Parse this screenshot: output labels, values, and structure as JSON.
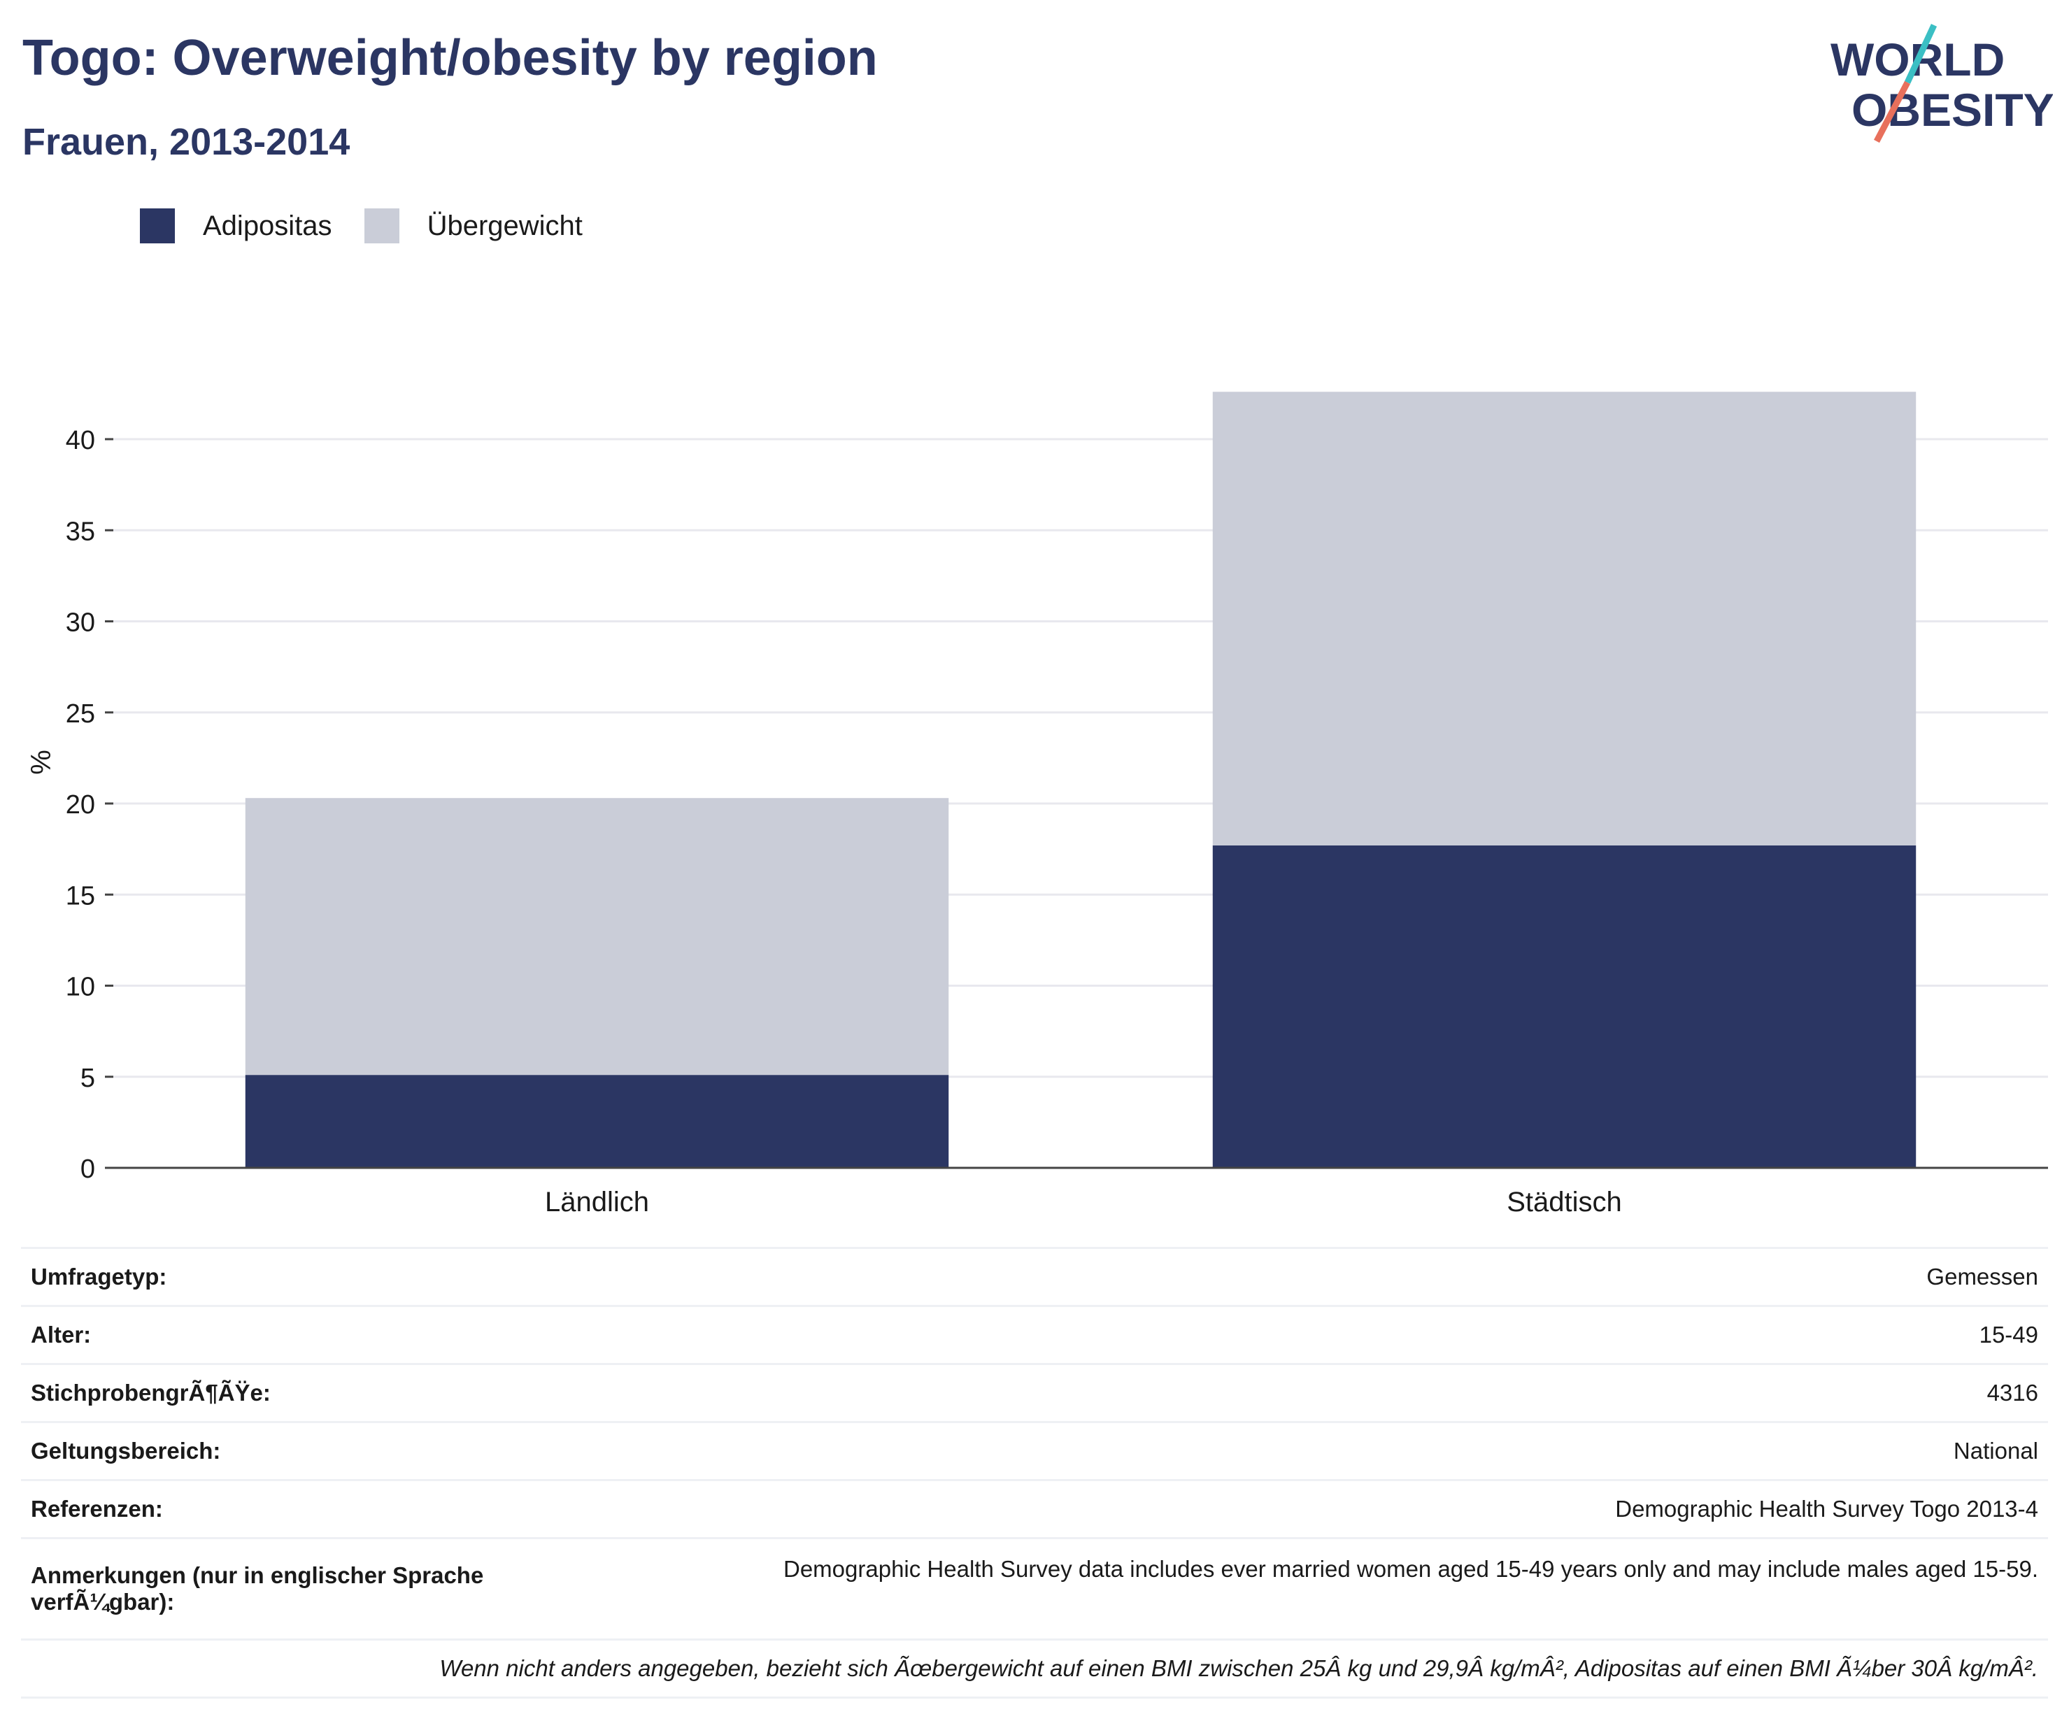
{
  "header": {
    "title": "Togo: Overweight/obesity by region",
    "subtitle": "Frauen, 2013-2014"
  },
  "logo": {
    "line1": "WORLD",
    "line2": "OBESITY"
  },
  "legend": [
    {
      "label": "Adipositas",
      "color": "#2b3663"
    },
    {
      "label": "Übergewicht",
      "color": "#cacdd8"
    }
  ],
  "chart_data": {
    "type": "bar",
    "stacked": true,
    "categories": [
      "Ländlich",
      "Städtisch"
    ],
    "series": [
      {
        "name": "Adipositas",
        "color": "#2b3663",
        "values": [
          5.1,
          17.7
        ]
      },
      {
        "name": "Übergewicht",
        "color": "#cacdd8",
        "values": [
          15.2,
          24.9
        ]
      }
    ],
    "ylabel": "%",
    "ylim": [
      0,
      44
    ],
    "yticks": [
      0,
      5,
      10,
      15,
      20,
      25,
      30,
      35,
      40
    ],
    "grid": true
  },
  "info": {
    "rows": [
      {
        "key": "Umfragetyp:",
        "value": "Gemessen"
      },
      {
        "key": "Alter:",
        "value": "15-49"
      },
      {
        "key": "StichprobengrÃ¶ÃŸe:",
        "value": "4316"
      },
      {
        "key": "Geltungsbereich:",
        "value": "National"
      },
      {
        "key": "Referenzen:",
        "value": "Demographic Health Survey Togo 2013-4"
      },
      {
        "key": "Anmerkungen (nur in englischer Sprache verfÃ¼gbar):",
        "value": "Demographic Health Survey data includes ever married women aged 15-49 years only and may include males aged 15-59."
      }
    ],
    "footnote": "Wenn nicht anders angegeben, bezieht sich Ãœbergewicht auf einen BMI zwischen 25Â kg und 29,9Â kg/mÂ², Adipositas auf einen BMI Ã¼ber 30Â kg/mÂ²."
  }
}
